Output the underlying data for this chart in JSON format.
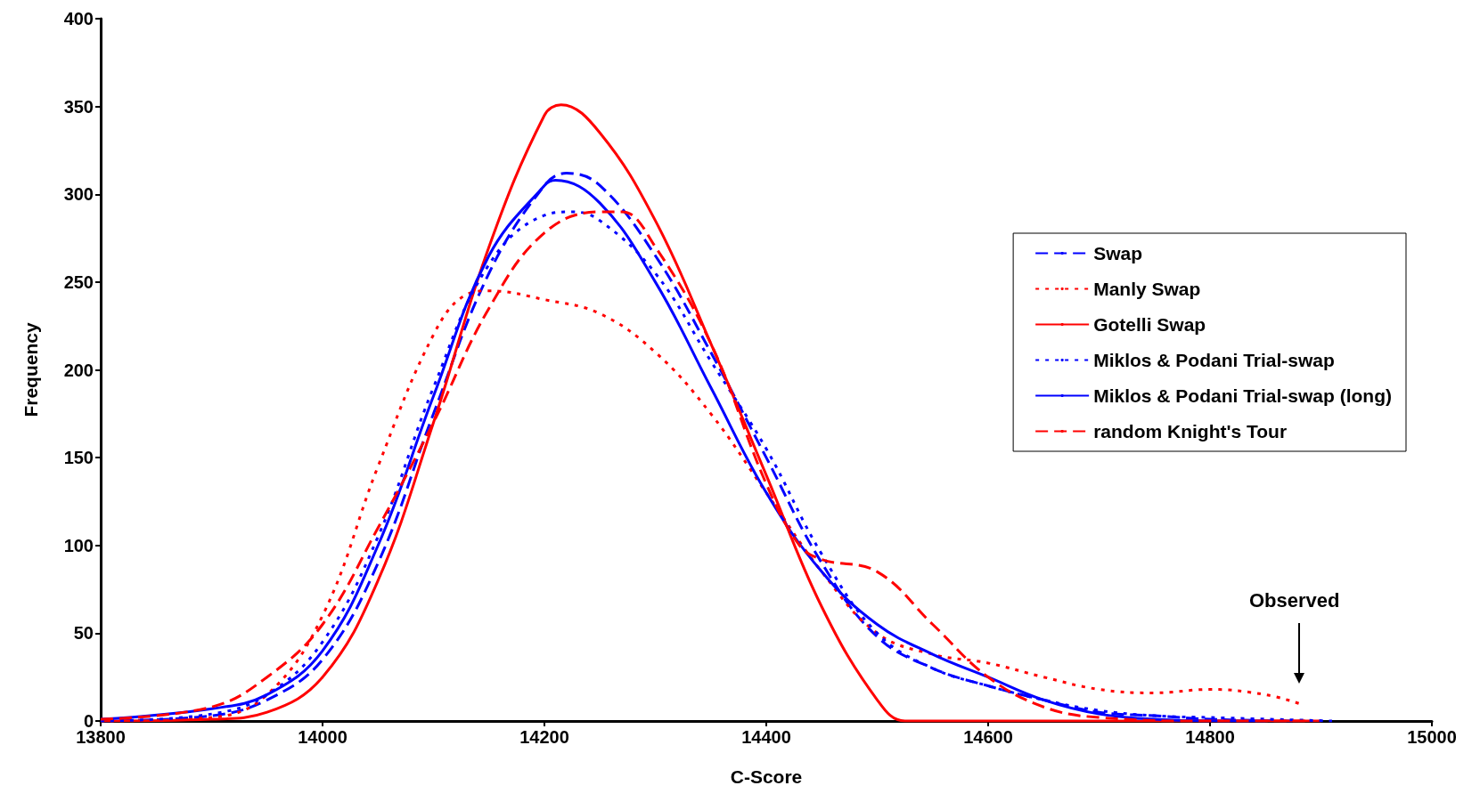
{
  "chart_data": {
    "type": "line",
    "xlabel": "C-Score",
    "ylabel": "Frequency",
    "xlim": [
      13800,
      15000
    ],
    "xticks": [
      13800,
      14000,
      14200,
      14400,
      14600,
      14800,
      15000
    ],
    "ylim": [
      0,
      400
    ],
    "yticks": [
      0,
      50,
      100,
      150,
      200,
      250,
      300,
      350,
      400
    ],
    "grid": false,
    "legend": "right",
    "marker": "none",
    "annotations": [
      "Observed"
    ],
    "series": [
      {
        "name": "Swap",
        "color": "#0000ff",
        "line_style": "dashed",
        "x": [
          13800,
          13900,
          13950,
          14000,
          14050,
          14100,
          14150,
          14200,
          14220,
          14250,
          14300,
          14350,
          14400,
          14450,
          14500,
          14550,
          14600,
          14650,
          14700,
          14750,
          14800,
          14880
        ],
        "values": [
          0,
          3,
          12,
          35,
          90,
          175,
          255,
          305,
          312,
          305,
          265,
          210,
          150,
          90,
          48,
          30,
          20,
          12,
          5,
          3,
          1,
          0
        ]
      },
      {
        "name": "Manly Swap",
        "color": "#ff0000",
        "line_style": "dotted",
        "x": [
          13800,
          13900,
          13950,
          14000,
          14050,
          14100,
          14130,
          14150,
          14200,
          14250,
          14300,
          14350,
          14400,
          14450,
          14500,
          14550,
          14600,
          14650,
          14700,
          14750,
          14800,
          14850,
          14880
        ],
        "values": [
          0,
          2,
          15,
          60,
          145,
          220,
          243,
          245,
          240,
          232,
          210,
          175,
          130,
          85,
          50,
          38,
          33,
          25,
          18,
          16,
          18,
          15,
          10
        ]
      },
      {
        "name": "Gotelli Swap",
        "color": "#ff0000",
        "line_style": "solid",
        "x": [
          13800,
          13900,
          13950,
          14000,
          14050,
          14100,
          14150,
          14200,
          14215,
          14250,
          14300,
          14350,
          14400,
          14450,
          14500,
          14525,
          14600,
          14700,
          14800,
          14900
        ],
        "values": [
          0,
          1,
          5,
          25,
          80,
          170,
          270,
          345,
          351,
          335,
          285,
          215,
          140,
          65,
          12,
          0,
          0,
          0,
          0,
          0
        ]
      },
      {
        "name": "Miklos & Podani Trial-swap",
        "color": "#0000ff",
        "line_style": "dotted",
        "x": [
          13800,
          13900,
          13950,
          14000,
          14050,
          14100,
          14150,
          14200,
          14225,
          14250,
          14300,
          14350,
          14400,
          14450,
          14500,
          14550,
          14600,
          14650,
          14700,
          14750,
          14800,
          14910
        ],
        "values": [
          0,
          4,
          15,
          45,
          105,
          190,
          260,
          288,
          290,
          285,
          255,
          205,
          155,
          95,
          50,
          30,
          20,
          12,
          6,
          3,
          2,
          0
        ]
      },
      {
        "name": "Miklos & Podani Trial-swap (long)",
        "color": "#0000ff",
        "line_style": "solid",
        "x": [
          13800,
          13900,
          13950,
          14000,
          14050,
          14100,
          14150,
          14200,
          14210,
          14250,
          14300,
          14350,
          14400,
          14450,
          14500,
          14550,
          14600,
          14650,
          14700,
          14750,
          14800,
          14850
        ],
        "values": [
          1,
          7,
          15,
          40,
          100,
          185,
          265,
          305,
          308,
          295,
          250,
          190,
          130,
          85,
          55,
          38,
          25,
          12,
          4,
          1,
          0,
          0
        ]
      },
      {
        "name": "random Knight's Tour",
        "color": "#ff0000",
        "line_style": "dashed",
        "x": [
          13800,
          13900,
          13950,
          14000,
          14050,
          14100,
          14150,
          14200,
          14250,
          14270,
          14300,
          14350,
          14400,
          14430,
          14450,
          14500,
          14550,
          14600,
          14650,
          14700,
          14800,
          14890
        ],
        "values": [
          1,
          8,
          25,
          55,
          110,
          170,
          235,
          278,
          290,
          290,
          270,
          215,
          135,
          100,
          92,
          85,
          55,
          25,
          8,
          2,
          0,
          0
        ]
      }
    ]
  }
}
